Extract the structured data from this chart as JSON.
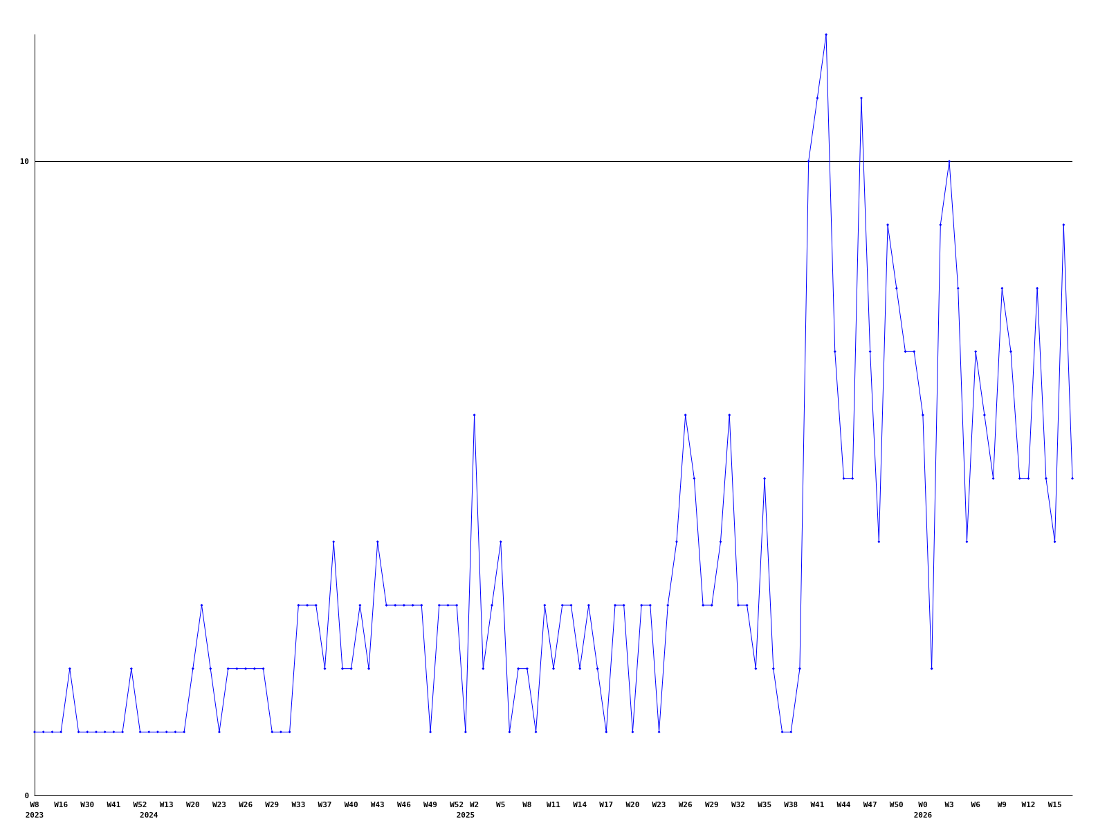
{
  "chart_data": {
    "type": "line",
    "categories": [
      "W8\n2023",
      null,
      null,
      "W16",
      null,
      null,
      "W30",
      null,
      null,
      "W41",
      null,
      null,
      "W52",
      "\n2024",
      null,
      "W13",
      null,
      null,
      "W20",
      null,
      null,
      "W23",
      null,
      null,
      "W26",
      null,
      null,
      "W29",
      null,
      null,
      "W33",
      null,
      null,
      "W37",
      null,
      null,
      "W40",
      null,
      null,
      "W43",
      null,
      null,
      "W46",
      null,
      null,
      "W49",
      null,
      null,
      "W52",
      "\n2025",
      "W2",
      null,
      null,
      "W5",
      null,
      null,
      "W8",
      null,
      null,
      "W11",
      null,
      null,
      "W14",
      null,
      null,
      "W17",
      null,
      null,
      "W20",
      null,
      null,
      "W23",
      null,
      null,
      "W26",
      null,
      null,
      "W29",
      null,
      null,
      "W32",
      null,
      null,
      "W35",
      null,
      null,
      "W38",
      null,
      null,
      "W41",
      null,
      null,
      "W44",
      null,
      null,
      "W47",
      null,
      null,
      "W50",
      null,
      null,
      "W0\n2026",
      null,
      null,
      "W3",
      null,
      null,
      "W6",
      null,
      null,
      "W9",
      null,
      null,
      "W12",
      null,
      null,
      "W15",
      null,
      null
    ],
    "series": [
      {
        "color": "#0000ff",
        "values": [
          1,
          1,
          1,
          1,
          2,
          1,
          1,
          1,
          1,
          1,
          1,
          2,
          1,
          1,
          1,
          1,
          1,
          1,
          2,
          3,
          2,
          1,
          2,
          2,
          2,
          2,
          2,
          1,
          1,
          1,
          3,
          3,
          3,
          2,
          4,
          2,
          2,
          3,
          2,
          4,
          3,
          3,
          3,
          3,
          3,
          1,
          3,
          3,
          3,
          1,
          6,
          2,
          3,
          4,
          1,
          2,
          2,
          1,
          3,
          2,
          3,
          3,
          2,
          3,
          2,
          1,
          3,
          3,
          1,
          3,
          3,
          1,
          3,
          4,
          6,
          5,
          3,
          3,
          4,
          6,
          3,
          3,
          2,
          5,
          2,
          1,
          1,
          2,
          10,
          11,
          12,
          7,
          5,
          5,
          11,
          7,
          4,
          9,
          8,
          7,
          7,
          6,
          2,
          9,
          10,
          8,
          4,
          7,
          6,
          5,
          8,
          7,
          5,
          5,
          8,
          5,
          4,
          9,
          5
        ]
      }
    ],
    "ylim": [
      0,
      12
    ],
    "yticks": [
      0,
      10
    ],
    "grid": "y",
    "marker": "diamond",
    "line_style": "solid"
  }
}
